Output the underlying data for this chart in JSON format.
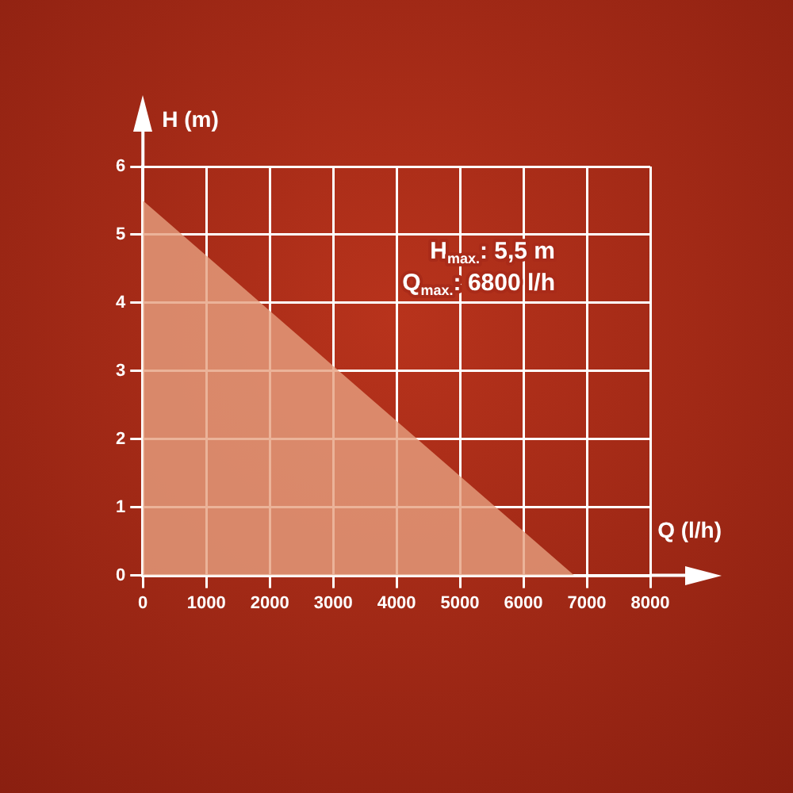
{
  "chart_data": {
    "type": "area",
    "xlabel": "Q (l/h)",
    "ylabel": "H (m)",
    "x": [
      0,
      6800
    ],
    "series": [
      {
        "color": "#e6a07f",
        "values": [
          5.5,
          0
        ]
      }
    ],
    "xlim": [
      0,
      8000
    ],
    "xticks": [
      0,
      1000,
      2000,
      3000,
      4000,
      5000,
      6000,
      7000,
      8000
    ],
    "ylim": [
      0,
      6
    ],
    "yticks": [
      0,
      1,
      2,
      3,
      4,
      5,
      6
    ],
    "grid": true,
    "annotations": [
      "H$_{max.}$: 5,5 m",
      "Q$_{max.}$: 6800 l/h"
    ]
  }
}
